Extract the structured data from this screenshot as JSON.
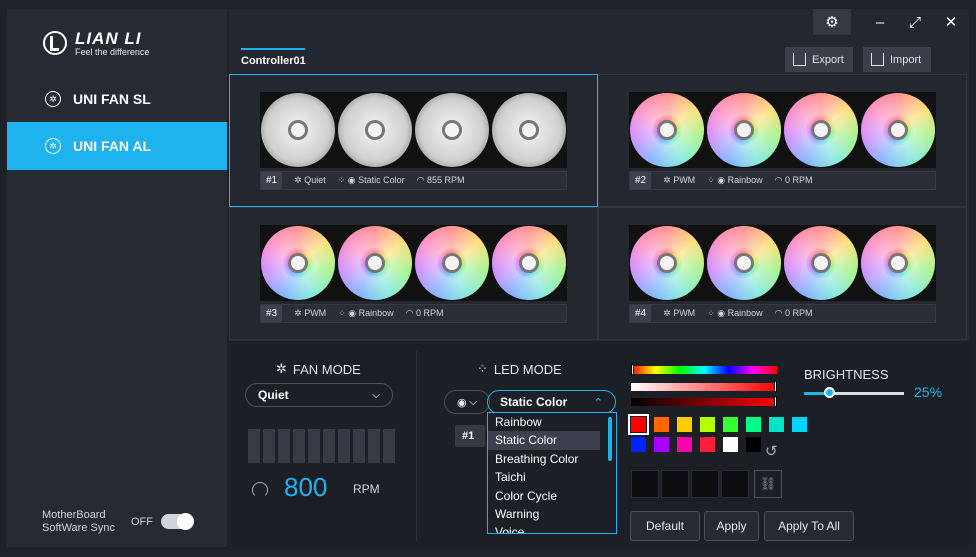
{
  "app": {
    "logo_title": "LIAN LI",
    "logo_tagline": "Feel the difference"
  },
  "sidebar": {
    "items": [
      {
        "label": "UNI FAN SL",
        "active": false
      },
      {
        "label": "UNI FAN AL",
        "active": true
      }
    ],
    "sync_label_line1": "MotherBoard",
    "sync_label_line2": "SoftWare Sync",
    "sync_state": "OFF"
  },
  "window": {
    "minimize": "–",
    "maximize": "⤢",
    "close": "✕",
    "settings": "⚙"
  },
  "header": {
    "controller_tab": "Controller01",
    "export_label": "Export",
    "import_label": "Import"
  },
  "groups": [
    {
      "number": "#1",
      "fan_mode": "Quiet",
      "led_mode": "Static Color",
      "rpm": "855 RPM",
      "style": "white"
    },
    {
      "number": "#2",
      "fan_mode": "PWM",
      "led_mode": "Rainbow",
      "rpm": "0 RPM",
      "style": "rgb"
    },
    {
      "number": "#3",
      "fan_mode": "PWM",
      "led_mode": "Rainbow",
      "rpm": "0 RPM",
      "style": "rgb"
    },
    {
      "number": "#4",
      "fan_mode": "PWM",
      "led_mode": "Rainbow",
      "rpm": "0 RPM",
      "style": "rgb"
    }
  ],
  "fan_mode": {
    "title": "FAN MODE",
    "selected": "Quiet",
    "rpm_value": "800",
    "rpm_unit": "RPM"
  },
  "led_mode": {
    "title": "LED MODE",
    "selected": "Static Color",
    "group_tag": "#1",
    "options": [
      "Rainbow",
      "Static Color",
      "Breathing Color",
      "Taichi",
      "Color Cycle",
      "Warning",
      "Voice"
    ],
    "highlighted": "Static Color"
  },
  "colors": {
    "accent": "#1eb2ee",
    "swatches": [
      "#ff0000",
      "#ff6a00",
      "#ffcc00",
      "#b4ff00",
      "#33ff33",
      "#00ff88",
      "#00e5c8",
      "#00d5ff",
      "#0022ff",
      "#aa00ff",
      "#ff00aa",
      "#ff1e3c",
      "#ffffff",
      "#000000"
    ],
    "selected_swatch": "#ff0000"
  },
  "brightness": {
    "label": "BRIGHTNESS",
    "value": "25%",
    "fraction": 0.25
  },
  "actions": {
    "default_label": "Default",
    "apply_label": "Apply",
    "apply_all_label": "Apply To All"
  }
}
